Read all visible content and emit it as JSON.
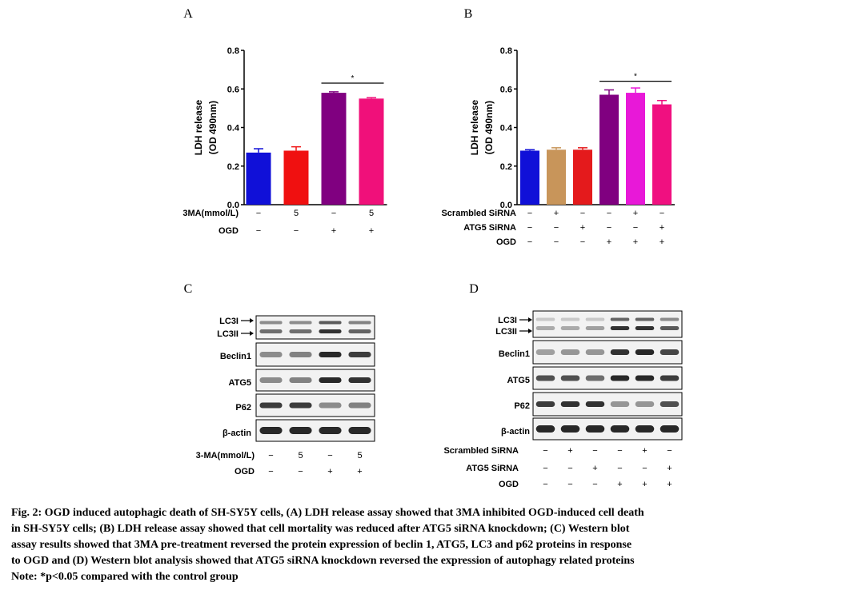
{
  "panels": {
    "A": {
      "label": "A",
      "ylabel_line1": "LDH release",
      "ylabel_line2": "(OD 490nm)",
      "sig_mark": "*",
      "conditions": [
        {
          "name": "3MA(mmol/L)",
          "values": [
            "−",
            "5",
            "−",
            "5"
          ]
        },
        {
          "name": "OGD",
          "values": [
            "−",
            "−",
            "+",
            "+"
          ]
        }
      ]
    },
    "B": {
      "label": "B",
      "ylabel_line1": "LDH release",
      "ylabel_line2": "(OD 490nm)",
      "sig_mark": "*",
      "conditions": [
        {
          "name": "Scrambled SiRNA",
          "values": [
            "−",
            "+",
            "−",
            "−",
            "+",
            "−"
          ]
        },
        {
          "name": "ATG5 SiRNA",
          "values": [
            "−",
            "−",
            "+",
            "−",
            "−",
            "+"
          ]
        },
        {
          "name": "OGD",
          "values": [
            "−",
            "−",
            "−",
            "+",
            "+",
            "+"
          ]
        }
      ]
    },
    "C": {
      "label": "C",
      "blots": [
        "LC3I",
        "LC3II",
        "Beclin1",
        "ATG5",
        "P62",
        "β-actin"
      ],
      "conditions": [
        {
          "name": "3-MA(mmol/L)",
          "values": [
            "−",
            "5",
            "−",
            "5"
          ]
        },
        {
          "name": "OGD",
          "values": [
            "−",
            "−",
            "+",
            "+"
          ]
        }
      ]
    },
    "D": {
      "label": "D",
      "blots": [
        "LC3I",
        "LC3II",
        "Beclin1",
        "ATG5",
        "P62",
        "β-actin"
      ],
      "conditions": [
        {
          "name": "Scrambled SiRNA",
          "values": [
            "−",
            "+",
            "−",
            "−",
            "+",
            "−"
          ]
        },
        {
          "name": "ATG5 SiRNA",
          "values": [
            "−",
            "−",
            "+",
            "−",
            "−",
            "+"
          ]
        },
        {
          "name": "OGD",
          "values": [
            "−",
            "−",
            "−",
            "+",
            "+",
            "+"
          ]
        }
      ]
    }
  },
  "chart_data": [
    {
      "type": "bar",
      "panel": "A",
      "title": "",
      "ylabel": "LDH release (OD 490nm)",
      "ylim": [
        0,
        0.8
      ],
      "yticks": [
        "0.0",
        "0.2",
        "0.4",
        "0.6",
        "0.8"
      ],
      "ytick_values": [
        0,
        0.2,
        0.4,
        0.6,
        0.8
      ],
      "values": [
        0.27,
        0.28,
        0.58,
        0.55
      ],
      "errors": [
        0.02,
        0.02,
        0.005,
        0.005
      ],
      "colors": [
        "#1010d8",
        "#f01010",
        "#800080",
        "#f0107a"
      ],
      "significance": {
        "from": 2,
        "to": 3,
        "y": 0.63,
        "label": "*"
      }
    },
    {
      "type": "bar",
      "panel": "B",
      "title": "",
      "ylabel": "LDH release (OD 490nm)",
      "ylim": [
        0,
        0.8
      ],
      "yticks": [
        "0.0",
        "0.2",
        "0.4",
        "0.6",
        "0.8"
      ],
      "ytick_values": [
        0,
        0.2,
        0.4,
        0.6,
        0.8
      ],
      "values": [
        0.28,
        0.285,
        0.285,
        0.57,
        0.58,
        0.52
      ],
      "errors": [
        0.005,
        0.01,
        0.01,
        0.025,
        0.025,
        0.02
      ],
      "colors": [
        "#1010d8",
        "#c8955a",
        "#e41a1c",
        "#800080",
        "#e818d8",
        "#f01080"
      ],
      "significance": {
        "from": 3,
        "to": 5,
        "y": 0.64,
        "label": "*"
      }
    }
  ],
  "caption": {
    "line1": "Fig. 2: OGD induced autophagic death of SH-SY5Y cells, (A) LDH release assay showed that 3MA inhibited OGD-induced cell death",
    "line2": "in SH-SY5Y cells; (B) LDH release assay showed that cell mortality was reduced after ATG5 siRNA knockdown; (C) Western blot",
    "line3": "assay results showed that 3MA pre-treatment reversed the protein expression of beclin 1, ATG5, LC3 and p62 proteins in response",
    "line4": "to OGD and (D) Western blot analysis showed that ATG5 siRNA knockdown reversed the expression of autophagy related proteins",
    "note": "Note: *p<0.05 compared with the control group"
  }
}
